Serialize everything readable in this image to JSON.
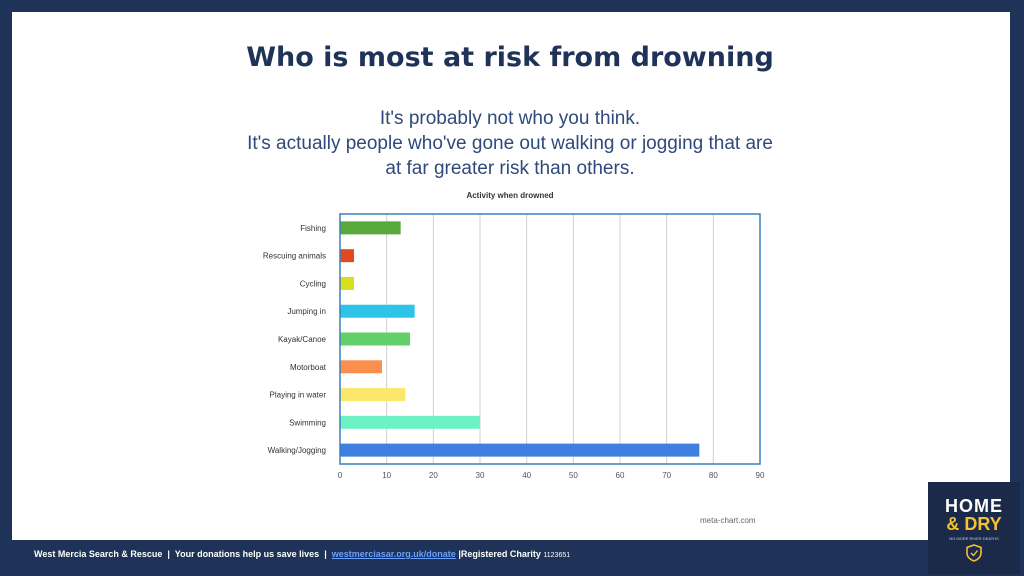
{
  "slide": {
    "title": "Who is most at risk from drowning",
    "subtitle_lines": [
      "It's probably not who you think.",
      "It's actually people who've gone out walking or jogging that are",
      "at far greater risk than others."
    ],
    "credit": "meta-chart.com"
  },
  "chart_data": {
    "type": "bar",
    "orientation": "horizontal",
    "title": "Activity when drowned",
    "categories": [
      "Fishing",
      "Rescuing animals",
      "Cycling",
      "Jumping in",
      "Kayak/Canoe",
      "Motorboat",
      "Playing in water",
      "Swimming",
      "Walking/Jogging"
    ],
    "values": [
      13,
      3,
      3,
      16,
      15,
      9,
      14,
      30,
      77
    ],
    "colors": [
      "#58a83a",
      "#e04a1e",
      "#d8de1c",
      "#2ec4e8",
      "#62d06a",
      "#fb8f4e",
      "#fbe86a",
      "#6ef2c4",
      "#3f7fe0"
    ],
    "xlim": [
      0,
      90
    ],
    "xticks": [
      0,
      10,
      20,
      30,
      40,
      50,
      60,
      70,
      80,
      90
    ],
    "xlabel": "",
    "ylabel": "",
    "grid": true,
    "border_color": "#3b7fc0"
  },
  "footer": {
    "org": "West Mercia Search & Rescue",
    "sep1": "|",
    "donate_text": "Your donations help us save lives",
    "sep2": "|",
    "url": "westmerciasar.org.uk/donate",
    "sep3": "|",
    "charity": "Registered Charity",
    "charity_number": "1123651"
  },
  "logo": {
    "line1": "HOME",
    "line2": "& DRY",
    "tagline": "NO MORE RIVER DEATHS",
    "badge_icon": "shield-icon",
    "accent": "#f2c230"
  }
}
